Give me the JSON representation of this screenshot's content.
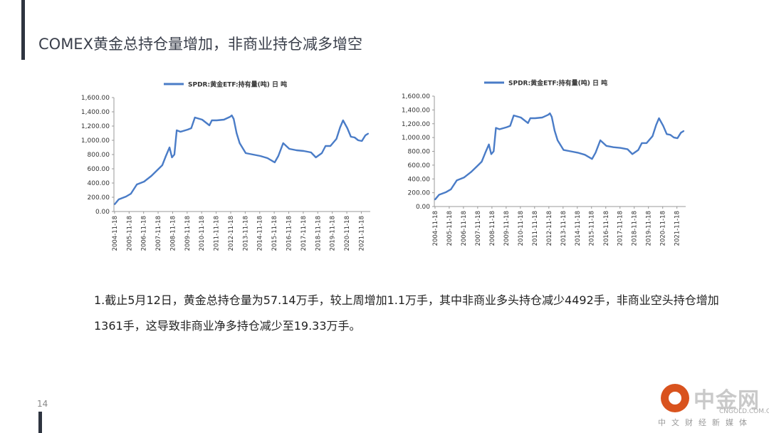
{
  "slide": {
    "title": "COMEX黄金总持仓量增加，非商业持仓减多增空",
    "body": "1.截止5月12日，黄金总持仓量为57.14万手，较上周增加1.1万手，其中非商业多头持仓减少4492手，非商业空头持仓增加1361手，这导致非商业净多持仓减少至19.33万手。",
    "page_number": "14"
  },
  "logo": {
    "name": "中金网",
    "domain": "CNGOLD.COM.CN",
    "tagline": "中文财经新媒体"
  },
  "colors": {
    "line": "#4a7cc7",
    "title": "#3a3f4b",
    "accent": "#d9531e"
  },
  "chart_data": [
    {
      "type": "line",
      "legend": [
        "SPDR:黄金ETF:持有量(吨) 日 吨"
      ],
      "legend_position": "top",
      "grid": false,
      "ylim": [
        0,
        1600
      ],
      "yticks": [
        "0.00",
        "200.00",
        "400.00",
        "600.00",
        "800.00",
        "1,000.00",
        "1,200.00",
        "1,400.00",
        "1,600.00"
      ],
      "xticks": [
        "2004-11-18",
        "2005-11-18",
        "2006-11-18",
        "2007-11-18",
        "2008-11-18",
        "2009-11-18",
        "2010-11-18",
        "2011-11-18",
        "2012-11-18",
        "2013-11-18",
        "2014-11-18",
        "2015-11-18",
        "2016-11-18",
        "2017-11-18",
        "2018-11-18",
        "2019-11-18",
        "2020-11-18",
        "2021-11-18"
      ],
      "series": [
        {
          "name": "SPDR:黄金ETF:持有量(吨) 日 吨",
          "x": [
            "2004-11-18",
            "2005-03-01",
            "2005-09-01",
            "2006-01-01",
            "2006-06-01",
            "2006-12-01",
            "2007-06-01",
            "2007-12-01",
            "2008-03-01",
            "2008-06-01",
            "2008-09-01",
            "2008-11-01",
            "2009-01-01",
            "2009-03-01",
            "2009-06-01",
            "2009-12-01",
            "2010-03-01",
            "2010-06-01",
            "2010-12-01",
            "2011-06-01",
            "2011-08-01",
            "2011-12-01",
            "2012-06-01",
            "2012-11-01",
            "2012-12-15",
            "2013-02-01",
            "2013-04-15",
            "2013-07-01",
            "2013-12-01",
            "2014-06-01",
            "2014-12-01",
            "2015-06-01",
            "2015-12-01",
            "2016-03-01",
            "2016-07-01",
            "2016-12-01",
            "2017-06-01",
            "2017-12-01",
            "2018-06-01",
            "2018-10-01",
            "2019-03-01",
            "2019-06-01",
            "2019-10-01",
            "2020-03-01",
            "2020-06-01",
            "2020-08-15",
            "2020-12-01",
            "2021-03-01",
            "2021-06-01",
            "2021-09-01",
            "2021-12-01",
            "2022-03-01",
            "2022-05-12"
          ],
          "values": [
            100,
            170,
            210,
            250,
            380,
            420,
            500,
            600,
            650,
            780,
            900,
            760,
            800,
            1140,
            1120,
            1150,
            1170,
            1320,
            1290,
            1210,
            1280,
            1280,
            1290,
            1330,
            1350,
            1300,
            1100,
            960,
            820,
            800,
            780,
            750,
            690,
            780,
            960,
            880,
            860,
            850,
            830,
            760,
            820,
            920,
            920,
            1020,
            1180,
            1280,
            1170,
            1050,
            1040,
            1000,
            990,
            1070,
            1095
          ]
        }
      ]
    },
    {
      "type": "line",
      "legend": [
        "SPDR:黄金ETF:持有量(吨) 日 吨"
      ],
      "legend_position": "top",
      "grid": false,
      "ylim": [
        0,
        1600
      ],
      "yticks": [
        "0.00",
        "200.00",
        "400.00",
        "600.00",
        "800.00",
        "1,000.00",
        "1,200.00",
        "1,400.00",
        "1,600.00"
      ],
      "xticks": [
        "2004-11-18",
        "2005-11-18",
        "2006-11-18",
        "2007-11-18",
        "2008-11-18",
        "2009-11-18",
        "2010-11-18",
        "2011-11-18",
        "2012-11-18",
        "2013-11-18",
        "2014-11-18",
        "2015-11-18",
        "2016-11-18",
        "2017-11-18",
        "2018-11-18",
        "2019-11-18",
        "2020-11-18",
        "2021-11-18"
      ],
      "series": [
        {
          "name": "SPDR:黄金ETF:持有量(吨) 日 吨",
          "x": [
            "2004-11-18",
            "2005-03-01",
            "2005-09-01",
            "2006-01-01",
            "2006-06-01",
            "2006-12-01",
            "2007-06-01",
            "2007-12-01",
            "2008-03-01",
            "2008-06-01",
            "2008-09-01",
            "2008-11-01",
            "2009-01-01",
            "2009-03-01",
            "2009-06-01",
            "2009-12-01",
            "2010-03-01",
            "2010-06-01",
            "2010-12-01",
            "2011-06-01",
            "2011-08-01",
            "2011-12-01",
            "2012-06-01",
            "2012-11-01",
            "2012-12-15",
            "2013-02-01",
            "2013-04-15",
            "2013-07-01",
            "2013-12-01",
            "2014-06-01",
            "2014-12-01",
            "2015-06-01",
            "2015-12-01",
            "2016-03-01",
            "2016-07-01",
            "2016-12-01",
            "2017-06-01",
            "2017-12-01",
            "2018-06-01",
            "2018-10-01",
            "2019-03-01",
            "2019-06-01",
            "2019-10-01",
            "2020-03-01",
            "2020-06-01",
            "2020-08-15",
            "2020-12-01",
            "2021-03-01",
            "2021-06-01",
            "2021-09-01",
            "2021-12-01",
            "2022-03-01",
            "2022-05-12"
          ],
          "values": [
            100,
            170,
            210,
            250,
            380,
            420,
            500,
            600,
            650,
            780,
            900,
            760,
            800,
            1140,
            1120,
            1150,
            1170,
            1320,
            1290,
            1210,
            1280,
            1280,
            1290,
            1330,
            1350,
            1300,
            1100,
            960,
            820,
            800,
            780,
            750,
            690,
            780,
            960,
            880,
            860,
            850,
            830,
            760,
            820,
            920,
            920,
            1020,
            1180,
            1280,
            1170,
            1050,
            1040,
            1000,
            990,
            1070,
            1095
          ]
        }
      ]
    }
  ]
}
